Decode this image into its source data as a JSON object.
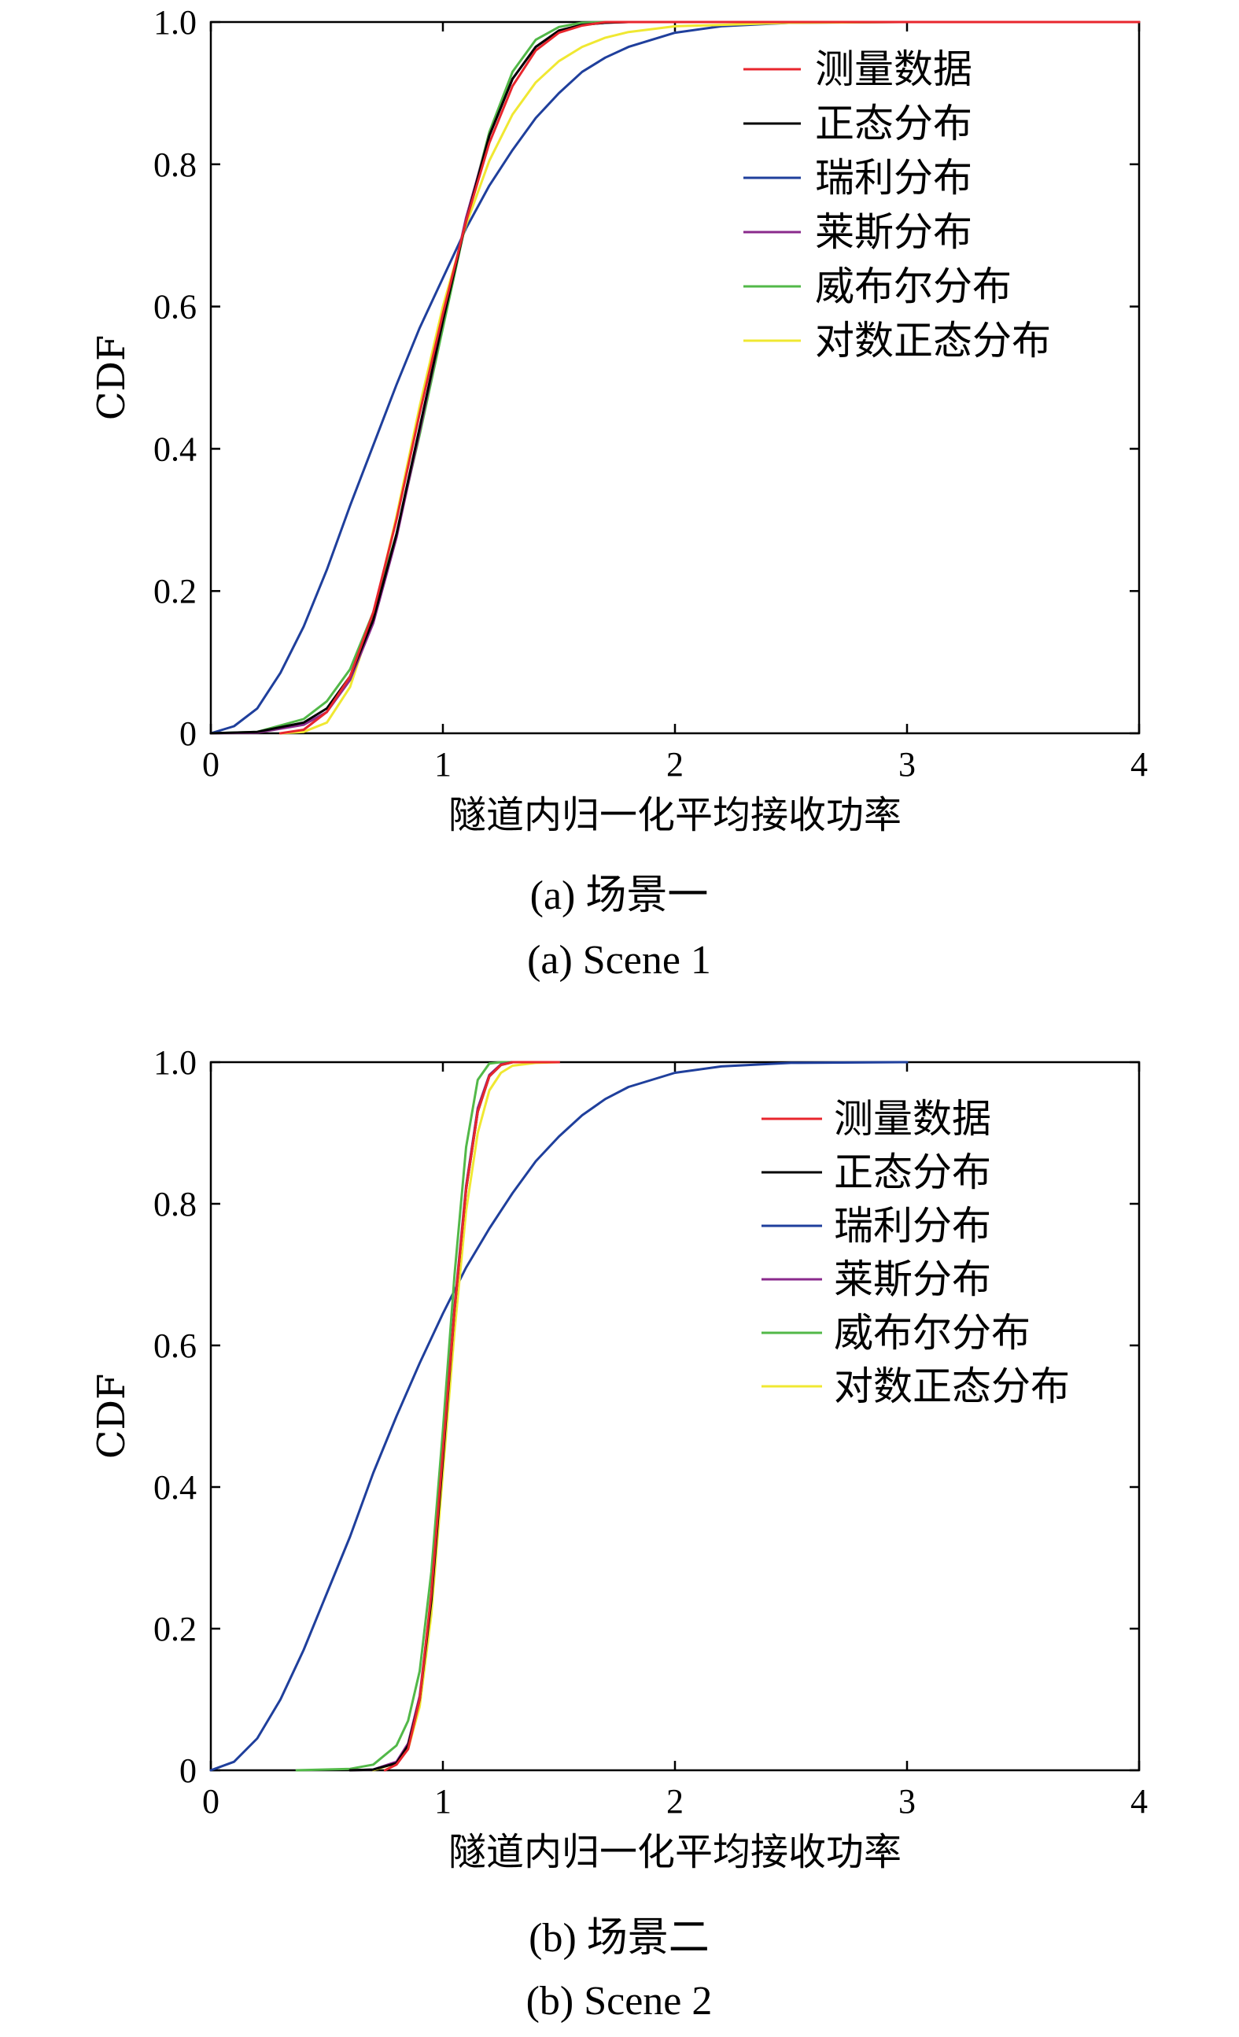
{
  "chart_data": [
    {
      "type": "line",
      "xlabel": "隧道内归一化平均接收功率",
      "ylabel": "CDF",
      "xlim": [
        0,
        4
      ],
      "ylim": [
        0,
        1
      ],
      "xticks": [
        "0",
        "1",
        "2",
        "3",
        "4"
      ],
      "yticks": [
        "0",
        "0.2",
        "0.4",
        "0.6",
        "0.8",
        "1.0"
      ],
      "grid": false,
      "legend_position": "top-right",
      "caption_cn": "(a) 场景一",
      "caption_en": "(a) Scene 1",
      "series": [
        {
          "name": "测量数据",
          "color": "#e8262d",
          "points": [
            [
              0.3,
              0.0
            ],
            [
              0.4,
              0.005
            ],
            [
              0.5,
              0.03
            ],
            [
              0.6,
              0.08
            ],
            [
              0.7,
              0.17
            ],
            [
              0.8,
              0.3
            ],
            [
              0.9,
              0.45
            ],
            [
              1.0,
              0.59
            ],
            [
              1.1,
              0.72
            ],
            [
              1.2,
              0.83
            ],
            [
              1.3,
              0.91
            ],
            [
              1.4,
              0.96
            ],
            [
              1.5,
              0.985
            ],
            [
              1.6,
              0.995
            ],
            [
              1.7,
              1.0
            ],
            [
              2.0,
              1.0
            ],
            [
              4.0,
              1.0
            ]
          ]
        },
        {
          "name": "正态分布",
          "color": "#000000",
          "points": [
            [
              0.0,
              0.0
            ],
            [
              0.2,
              0.002
            ],
            [
              0.4,
              0.015
            ],
            [
              0.5,
              0.035
            ],
            [
              0.6,
              0.08
            ],
            [
              0.7,
              0.16
            ],
            [
              0.8,
              0.28
            ],
            [
              0.9,
              0.43
            ],
            [
              1.0,
              0.58
            ],
            [
              1.1,
              0.72
            ],
            [
              1.2,
              0.84
            ],
            [
              1.3,
              0.92
            ],
            [
              1.4,
              0.965
            ],
            [
              1.5,
              0.988
            ],
            [
              1.6,
              0.996
            ],
            [
              1.7,
              0.999
            ],
            [
              1.8,
              1.0
            ],
            [
              2.0,
              1.0
            ],
            [
              4.0,
              1.0
            ]
          ]
        },
        {
          "name": "瑞利分布",
          "color": "#1f3f9c",
          "points": [
            [
              0.0,
              0.0
            ],
            [
              0.1,
              0.01
            ],
            [
              0.2,
              0.035
            ],
            [
              0.3,
              0.085
            ],
            [
              0.4,
              0.15
            ],
            [
              0.5,
              0.23
            ],
            [
              0.6,
              0.32
            ],
            [
              0.7,
              0.405
            ],
            [
              0.8,
              0.49
            ],
            [
              0.9,
              0.57
            ],
            [
              1.0,
              0.64
            ],
            [
              1.1,
              0.71
            ],
            [
              1.2,
              0.77
            ],
            [
              1.3,
              0.82
            ],
            [
              1.4,
              0.865
            ],
            [
              1.5,
              0.9
            ],
            [
              1.6,
              0.93
            ],
            [
              1.7,
              0.95
            ],
            [
              1.8,
              0.965
            ],
            [
              2.0,
              0.985
            ],
            [
              2.2,
              0.994
            ],
            [
              2.5,
              0.999
            ],
            [
              3.0,
              1.0
            ],
            [
              4.0,
              1.0
            ]
          ]
        },
        {
          "name": "莱斯分布",
          "color": "#8a2a8c",
          "points": [
            [
              0.0,
              0.0
            ],
            [
              0.2,
              0.001
            ],
            [
              0.4,
              0.012
            ],
            [
              0.5,
              0.03
            ],
            [
              0.6,
              0.075
            ],
            [
              0.7,
              0.155
            ],
            [
              0.8,
              0.275
            ],
            [
              0.9,
              0.425
            ],
            [
              1.0,
              0.58
            ],
            [
              1.1,
              0.725
            ],
            [
              1.2,
              0.84
            ],
            [
              1.3,
              0.92
            ],
            [
              1.4,
              0.965
            ],
            [
              1.5,
              0.988
            ],
            [
              1.6,
              0.996
            ],
            [
              1.7,
              0.999
            ],
            [
              1.8,
              1.0
            ],
            [
              2.0,
              1.0
            ],
            [
              4.0,
              1.0
            ]
          ]
        },
        {
          "name": "威布尔分布",
          "color": "#52b848",
          "points": [
            [
              0.0,
              0.0
            ],
            [
              0.2,
              0.002
            ],
            [
              0.4,
              0.02
            ],
            [
              0.5,
              0.045
            ],
            [
              0.6,
              0.09
            ],
            [
              0.7,
              0.17
            ],
            [
              0.8,
              0.28
            ],
            [
              0.9,
              0.42
            ],
            [
              1.0,
              0.57
            ],
            [
              1.1,
              0.72
            ],
            [
              1.2,
              0.845
            ],
            [
              1.3,
              0.93
            ],
            [
              1.4,
              0.975
            ],
            [
              1.5,
              0.993
            ],
            [
              1.6,
              0.999
            ],
            [
              1.7,
              1.0
            ],
            [
              2.0,
              1.0
            ],
            [
              4.0,
              1.0
            ]
          ]
        },
        {
          "name": "对数正态分布",
          "color": "#f0e832",
          "points": [
            [
              0.3,
              0.0
            ],
            [
              0.4,
              0.002
            ],
            [
              0.5,
              0.015
            ],
            [
              0.6,
              0.065
            ],
            [
              0.7,
              0.165
            ],
            [
              0.8,
              0.305
            ],
            [
              0.9,
              0.46
            ],
            [
              1.0,
              0.6
            ],
            [
              1.1,
              0.715
            ],
            [
              1.2,
              0.805
            ],
            [
              1.3,
              0.87
            ],
            [
              1.4,
              0.915
            ],
            [
              1.5,
              0.945
            ],
            [
              1.6,
              0.965
            ],
            [
              1.7,
              0.978
            ],
            [
              1.8,
              0.986
            ],
            [
              2.0,
              0.994
            ],
            [
              2.5,
              0.999
            ],
            [
              3.0,
              1.0
            ],
            [
              4.0,
              1.0
            ]
          ]
        }
      ]
    },
    {
      "type": "line",
      "xlabel": "隧道内归一化平均接收功率",
      "ylabel": "CDF",
      "xlim": [
        0,
        4
      ],
      "ylim": [
        0,
        1
      ],
      "xticks": [
        "0",
        "1",
        "2",
        "3",
        "4"
      ],
      "yticks": [
        "0",
        "0.2",
        "0.4",
        "0.6",
        "0.8",
        "1.0"
      ],
      "grid": false,
      "legend_position": "top-right",
      "caption_cn": "(b) 场景二",
      "caption_en": "(b) Scene 2",
      "series": [
        {
          "name": "测量数据",
          "color": "#e8262d",
          "points": [
            [
              0.75,
              0.0
            ],
            [
              0.8,
              0.008
            ],
            [
              0.85,
              0.03
            ],
            [
              0.9,
              0.1
            ],
            [
              0.95,
              0.25
            ],
            [
              1.0,
              0.45
            ],
            [
              1.05,
              0.65
            ],
            [
              1.1,
              0.82
            ],
            [
              1.15,
              0.93
            ],
            [
              1.2,
              0.98
            ],
            [
              1.25,
              0.996
            ],
            [
              1.3,
              1.0
            ],
            [
              1.5,
              1.0
            ]
          ]
        },
        {
          "name": "正态分布",
          "color": "#000000",
          "points": [
            [
              0.6,
              0.0
            ],
            [
              0.7,
              0.001
            ],
            [
              0.8,
              0.01
            ],
            [
              0.85,
              0.035
            ],
            [
              0.9,
              0.1
            ],
            [
              0.95,
              0.24
            ],
            [
              1.0,
              0.44
            ],
            [
              1.05,
              0.65
            ],
            [
              1.1,
              0.82
            ],
            [
              1.15,
              0.93
            ],
            [
              1.2,
              0.98
            ],
            [
              1.25,
              0.996
            ],
            [
              1.3,
              1.0
            ],
            [
              1.5,
              1.0
            ]
          ]
        },
        {
          "name": "瑞利分布",
          "color": "#1f3f9c",
          "points": [
            [
              0.0,
              0.0
            ],
            [
              0.1,
              0.012
            ],
            [
              0.2,
              0.045
            ],
            [
              0.3,
              0.1
            ],
            [
              0.4,
              0.17
            ],
            [
              0.5,
              0.25
            ],
            [
              0.6,
              0.33
            ],
            [
              0.7,
              0.42
            ],
            [
              0.8,
              0.5
            ],
            [
              0.9,
              0.575
            ],
            [
              1.0,
              0.645
            ],
            [
              1.1,
              0.71
            ],
            [
              1.2,
              0.765
            ],
            [
              1.3,
              0.815
            ],
            [
              1.4,
              0.86
            ],
            [
              1.5,
              0.895
            ],
            [
              1.6,
              0.925
            ],
            [
              1.7,
              0.948
            ],
            [
              1.8,
              0.965
            ],
            [
              2.0,
              0.985
            ],
            [
              2.2,
              0.994
            ],
            [
              2.5,
              0.999
            ],
            [
              3.0,
              1.0
            ]
          ]
        },
        {
          "name": "莱斯分布",
          "color": "#8a2a8c",
          "points": [
            [
              0.6,
              0.0
            ],
            [
              0.7,
              0.001
            ],
            [
              0.8,
              0.012
            ],
            [
              0.85,
              0.038
            ],
            [
              0.9,
              0.105
            ],
            [
              0.95,
              0.245
            ],
            [
              1.0,
              0.445
            ],
            [
              1.05,
              0.655
            ],
            [
              1.1,
              0.825
            ],
            [
              1.15,
              0.935
            ],
            [
              1.2,
              0.982
            ],
            [
              1.25,
              0.997
            ],
            [
              1.3,
              1.0
            ],
            [
              1.5,
              1.0
            ]
          ]
        },
        {
          "name": "威布尔分布",
          "color": "#52b848",
          "points": [
            [
              0.37,
              0.0
            ],
            [
              0.6,
              0.002
            ],
            [
              0.7,
              0.008
            ],
            [
              0.8,
              0.035
            ],
            [
              0.85,
              0.07
            ],
            [
              0.9,
              0.14
            ],
            [
              0.95,
              0.28
            ],
            [
              1.0,
              0.48
            ],
            [
              1.05,
              0.7
            ],
            [
              1.1,
              0.88
            ],
            [
              1.15,
              0.975
            ],
            [
              1.2,
              0.998
            ],
            [
              1.25,
              1.0
            ],
            [
              1.5,
              1.0
            ]
          ]
        },
        {
          "name": "对数正态分布",
          "color": "#f0e832",
          "points": [
            [
              0.7,
              0.0
            ],
            [
              0.8,
              0.01
            ],
            [
              0.85,
              0.03
            ],
            [
              0.9,
              0.09
            ],
            [
              0.95,
              0.22
            ],
            [
              1.0,
              0.42
            ],
            [
              1.05,
              0.62
            ],
            [
              1.1,
              0.79
            ],
            [
              1.15,
              0.9
            ],
            [
              1.2,
              0.96
            ],
            [
              1.25,
              0.985
            ],
            [
              1.3,
              0.995
            ],
            [
              1.4,
              0.999
            ],
            [
              1.5,
              1.0
            ]
          ]
        }
      ]
    }
  ]
}
